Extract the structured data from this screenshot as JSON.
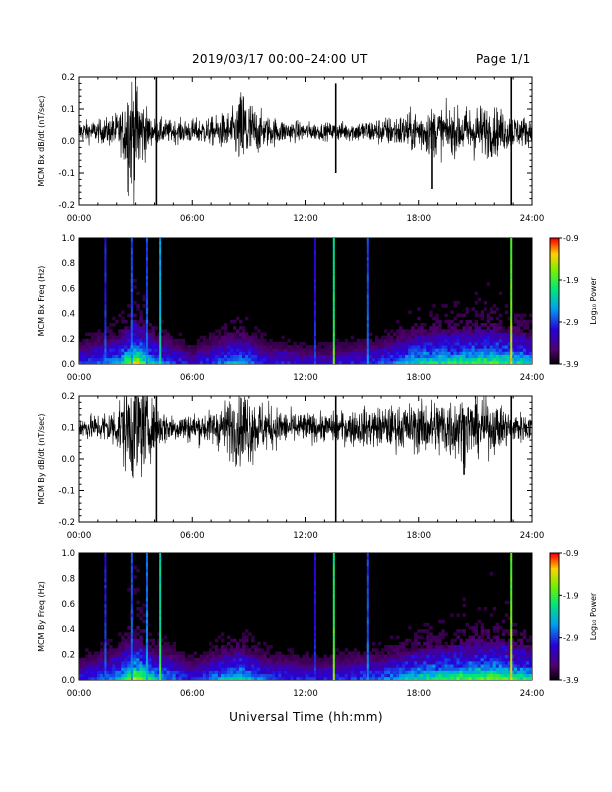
{
  "header": {
    "title": "2019/03/17   00:00–24:00 UT",
    "page": "Page 1/1"
  },
  "x_axis_label": "Universal Time (hh:mm)",
  "chart_data": [
    {
      "type": "line",
      "ylabel": "MCM Bx dB/dt (nT/sec)",
      "xlim": [
        0,
        24
      ],
      "ylim": [
        -0.2,
        0.2
      ],
      "x_ticks": [
        "00:00",
        "06:00",
        "12:00",
        "18:00",
        "24:00"
      ],
      "y_ticks": [
        "-0.2",
        "-0.1",
        "0.0",
        "0.1",
        "0.2"
      ],
      "baseline": 0.03,
      "envelope": [
        [
          0,
          0.04
        ],
        [
          1,
          0.04
        ],
        [
          1.5,
          0.05
        ],
        [
          2.3,
          0.08
        ],
        [
          2.6,
          0.22
        ],
        [
          3.0,
          0.22
        ],
        [
          3.4,
          0.12
        ],
        [
          3.8,
          0.05
        ],
        [
          5,
          0.04
        ],
        [
          7,
          0.05
        ],
        [
          8.2,
          0.08
        ],
        [
          8.7,
          0.17
        ],
        [
          9.2,
          0.1
        ],
        [
          9.8,
          0.06
        ],
        [
          11,
          0.04
        ],
        [
          13,
          0.03
        ],
        [
          15,
          0.04
        ],
        [
          17,
          0.06
        ],
        [
          18,
          0.08
        ],
        [
          19,
          0.09
        ],
        [
          20,
          0.08
        ],
        [
          21,
          0.1
        ],
        [
          22,
          0.09
        ],
        [
          23,
          0.06
        ],
        [
          24,
          0.05
        ]
      ],
      "spikes": [
        [
          4.1,
          -0.21,
          0.2
        ],
        [
          13.6,
          -0.1,
          0.18
        ],
        [
          18.7,
          -0.15,
          0.06
        ],
        [
          22.9,
          -0.21,
          0.21
        ]
      ]
    },
    {
      "type": "heatmap",
      "ylabel": "MCM Bx Freq (Hz)",
      "xlim": [
        0,
        24
      ],
      "ylim": [
        0,
        1.0
      ],
      "x_ticks": [
        "00:00",
        "06:00",
        "12:00",
        "18:00",
        "24:00"
      ],
      "y_ticks": [
        "0.0",
        "0.2",
        "0.4",
        "0.6",
        "0.8",
        "1.0"
      ],
      "colorbar": {
        "min": -3.9,
        "max": -0.9,
        "ticks": [
          "-0.9",
          "-1.9",
          "-2.9",
          "-3.9"
        ],
        "label": "Log₁₀ Power"
      },
      "activity": [
        [
          0,
          0.2
        ],
        [
          2,
          0.35
        ],
        [
          3,
          0.7
        ],
        [
          4,
          0.35
        ],
        [
          6,
          0.15
        ],
        [
          8.5,
          0.4
        ],
        [
          10,
          0.2
        ],
        [
          13,
          0.15
        ],
        [
          16,
          0.25
        ],
        [
          18,
          0.45
        ],
        [
          20,
          0.5
        ],
        [
          22,
          0.55
        ],
        [
          24,
          0.4
        ]
      ],
      "vertical_lines": [
        [
          1.4,
          0.4
        ],
        [
          2.8,
          0.45
        ],
        [
          3.6,
          0.45
        ],
        [
          4.3,
          0.6
        ],
        [
          12.5,
          0.35
        ],
        [
          13.5,
          0.75
        ],
        [
          15.3,
          0.45
        ],
        [
          22.9,
          0.9
        ]
      ]
    },
    {
      "type": "line",
      "ylabel": "MCM By dB/dt (nT/sec)",
      "xlim": [
        0,
        24
      ],
      "ylim": [
        -0.2,
        0.2
      ],
      "x_ticks": [
        "00:00",
        "06:00",
        "12:00",
        "18:00",
        "24:00"
      ],
      "y_ticks": [
        "-0.2",
        "-0.1",
        "0.0",
        "0.1",
        "0.2"
      ],
      "baseline": 0.1,
      "envelope": [
        [
          0,
          0.04
        ],
        [
          1,
          0.05
        ],
        [
          2,
          0.08
        ],
        [
          2.5,
          0.17
        ],
        [
          3.1,
          0.22
        ],
        [
          3.5,
          0.15
        ],
        [
          4,
          0.08
        ],
        [
          5,
          0.05
        ],
        [
          7,
          0.06
        ],
        [
          8.2,
          0.12
        ],
        [
          8.8,
          0.15
        ],
        [
          9.5,
          0.1
        ],
        [
          11,
          0.06
        ],
        [
          13,
          0.05
        ],
        [
          15,
          0.07
        ],
        [
          17,
          0.08
        ],
        [
          18.5,
          0.1
        ],
        [
          19.5,
          0.12
        ],
        [
          21,
          0.11
        ],
        [
          22,
          0.09
        ],
        [
          23,
          0.06
        ],
        [
          24,
          0.05
        ]
      ],
      "spikes": [
        [
          4.1,
          -0.21,
          0.2
        ],
        [
          13.6,
          -0.21,
          0.2
        ],
        [
          20.4,
          -0.05,
          0.14
        ],
        [
          22.9,
          -0.21,
          0.2
        ]
      ]
    },
    {
      "type": "heatmap",
      "ylabel": "MCM By Freq (Hz)",
      "xlim": [
        0,
        24
      ],
      "ylim": [
        0,
        1.0
      ],
      "x_ticks": [
        "00:00",
        "06:00",
        "12:00",
        "18:00",
        "24:00"
      ],
      "y_ticks": [
        "0.0",
        "0.2",
        "0.4",
        "0.6",
        "0.8",
        "1.0"
      ],
      "colorbar": {
        "min": -3.9,
        "max": -0.9,
        "ticks": [
          "-0.9",
          "-1.9",
          "-2.9",
          "-3.9"
        ],
        "label": "Log₁₀ Power"
      },
      "activity": [
        [
          0,
          0.2
        ],
        [
          2,
          0.35
        ],
        [
          3,
          0.7
        ],
        [
          4,
          0.4
        ],
        [
          6,
          0.2
        ],
        [
          8.5,
          0.45
        ],
        [
          10,
          0.25
        ],
        [
          13,
          0.2
        ],
        [
          16,
          0.3
        ],
        [
          18,
          0.45
        ],
        [
          20,
          0.55
        ],
        [
          22,
          0.6
        ],
        [
          24,
          0.45
        ]
      ],
      "vertical_lines": [
        [
          1.4,
          0.4
        ],
        [
          2.8,
          0.45
        ],
        [
          3.6,
          0.5
        ],
        [
          4.3,
          0.7
        ],
        [
          12.5,
          0.35
        ],
        [
          13.5,
          0.8
        ],
        [
          15.3,
          0.45
        ],
        [
          22.9,
          0.9
        ]
      ]
    }
  ]
}
